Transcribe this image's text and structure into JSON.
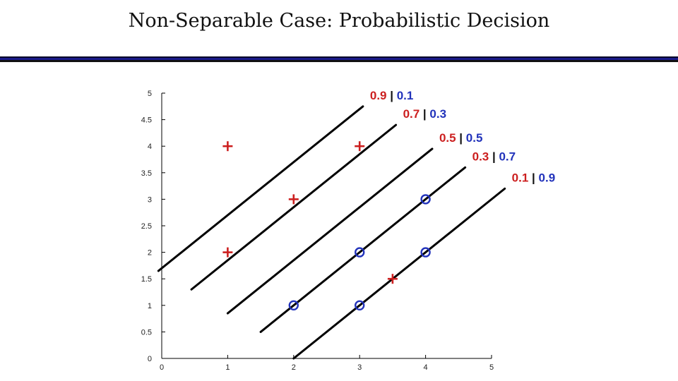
{
  "title": "Non-Separable Case: Probabilistic Decision",
  "colors": {
    "plus": "#cc1f1f",
    "circle": "#2233bb",
    "line": "#000000",
    "bar": "#111111"
  },
  "chart_data": {
    "type": "scatter",
    "xlim": [
      0,
      5
    ],
    "ylim": [
      0,
      5
    ],
    "x_ticks": [
      "0",
      "1",
      "2",
      "3",
      "4",
      "5"
    ],
    "y_ticks": [
      "0",
      "0.5",
      "1",
      "1.5",
      "2",
      "2.5",
      "3",
      "3.5",
      "4",
      "4.5",
      "5"
    ],
    "series": [
      {
        "marker": "+",
        "points": [
          [
            1,
            4
          ],
          [
            3,
            4
          ],
          [
            2,
            3
          ],
          [
            1,
            2
          ],
          [
            3.5,
            1.5
          ]
        ]
      },
      {
        "marker": "o",
        "points": [
          [
            4,
            3
          ],
          [
            3,
            2
          ],
          [
            4,
            2
          ],
          [
            2,
            1
          ],
          [
            3,
            1
          ]
        ]
      }
    ],
    "lines": [
      {
        "x": [
          -0.05,
          3.05
        ],
        "y": [
          1.65,
          4.75
        ],
        "label_left": "0.9",
        "label_right": "0.1"
      },
      {
        "x": [
          0.45,
          3.55
        ],
        "y": [
          1.3,
          4.4
        ],
        "label_left": "0.7",
        "label_right": "0.3"
      },
      {
        "x": [
          1.0,
          4.1
        ],
        "y": [
          0.85,
          3.95
        ],
        "label_left": "0.5",
        "label_right": "0.5"
      },
      {
        "x": [
          1.5,
          4.6
        ],
        "y": [
          0.5,
          3.6
        ],
        "label_left": "0.3",
        "label_right": "0.7"
      },
      {
        "x": [
          2.0,
          5.2
        ],
        "y": [
          0.0,
          3.2
        ],
        "label_left": "0.1",
        "label_right": "0.9"
      }
    ],
    "separator": "|"
  }
}
